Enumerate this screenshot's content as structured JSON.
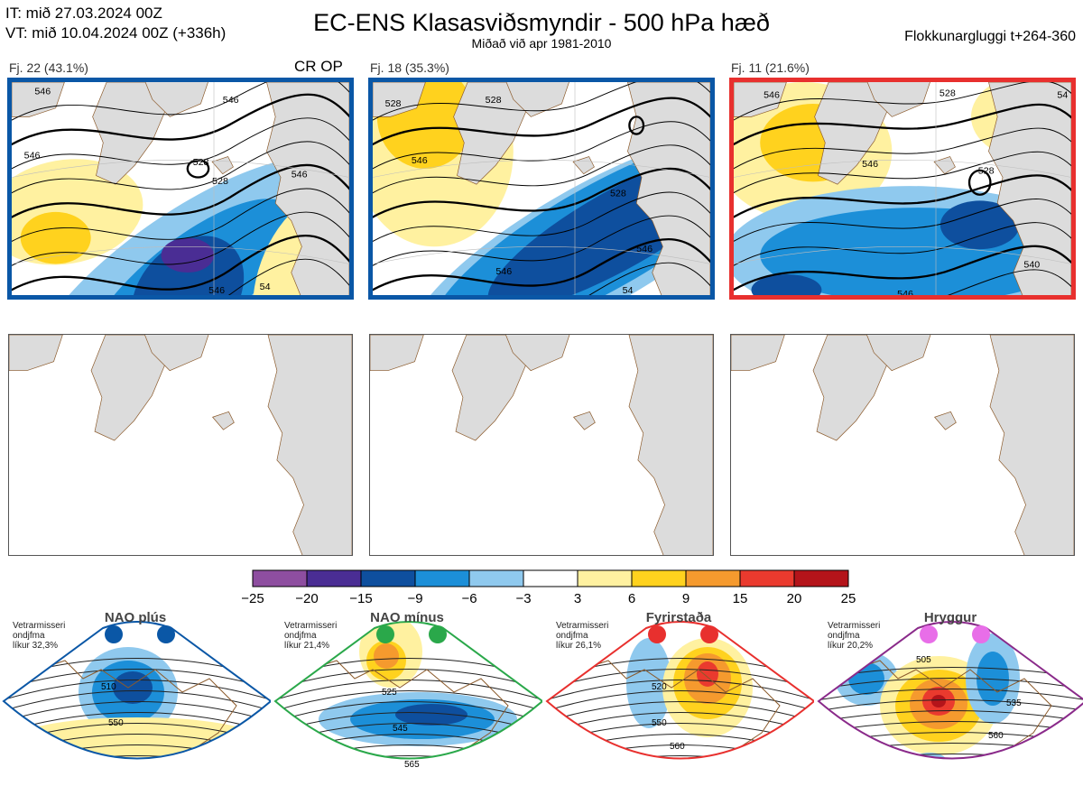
{
  "header": {
    "it": "IT: mið 27.03.2024 00Z",
    "vt": "VT: mið 10.04.2024 00Z  (+336h)",
    "title": "EC-ENS Klasasviðsmyndir - 500 hPa hæð",
    "subtitle": "Miðað við apr 1981-2010",
    "window": "Flokkunargluggi t+264-360"
  },
  "clusters": [
    {
      "label": "Fj. 22 (43.1%)",
      "tag": "CR OP",
      "border": "#0a57a6",
      "contours": [
        "546",
        "528",
        "528",
        "546",
        "546",
        "546",
        "546",
        "54"
      ]
    },
    {
      "label": "Fj. 18 (35.3%)",
      "tag": "",
      "border": "#0a57a6",
      "contours": [
        "528",
        "546",
        "528",
        "528",
        "546",
        "546",
        "54"
      ]
    },
    {
      "label": "Fj. 11 (21.6%)",
      "tag": "",
      "border": "#e8302e",
      "contours": [
        "546",
        "528",
        "546",
        "528",
        "54",
        "546",
        "540"
      ]
    }
  ],
  "colorbar": {
    "ticks": [
      "−25",
      "−20",
      "−15",
      "−9",
      "−6",
      "−3",
      "3",
      "6",
      "9",
      "15",
      "20",
      "25"
    ],
    "colors": [
      "#8e4ea0",
      "#4a2d94",
      "#0e4f9e",
      "#1c8fd8",
      "#8fc9ee",
      "#ffffff",
      "#fff1a0",
      "#ffd21e",
      "#f59a2e",
      "#ea3a2e",
      "#b4141a"
    ]
  },
  "regimes": [
    {
      "name": "NAO plús",
      "note": [
        "Vetrarmisseri",
        "ondjfma",
        "líkur 32,3%"
      ],
      "dot": "#0a57a6",
      "border": "#0a57a6",
      "contours": [
        "510",
        "550"
      ]
    },
    {
      "name": "NAO mínus",
      "note": [
        "Vetrarmisseri",
        "ondjfma",
        "líkur 21,4%"
      ],
      "dot": "#2aa84a",
      "border": "#2aa84a",
      "contours": [
        "525",
        "545",
        "565"
      ]
    },
    {
      "name": "Fyrirstaða",
      "note": [
        "Vetrarmisseri",
        "ondjfma",
        "líkur 26,1%"
      ],
      "dot": "#e8302e",
      "border": "#e8302e",
      "contours": [
        "520",
        "550",
        "560"
      ]
    },
    {
      "name": "Hryggur",
      "note": [
        "Vetrarmisseri",
        "ondjfma",
        "líkur 20,2%"
      ],
      "dot": "#e86ee8",
      "border": "#8a2a8a",
      "contours": [
        "505",
        "535",
        "560"
      ]
    }
  ],
  "chart_data": {
    "type": "heatmap",
    "title": "EC-ENS Klasasviðsmyndir - 500 hPa hæð",
    "subtitle": "Miðað við apr 1981-2010",
    "colorbar_ticks": [
      -25,
      -20,
      -15,
      -9,
      -6,
      -3,
      3,
      6,
      9,
      15,
      20,
      25
    ],
    "clusters": [
      {
        "label": "Fj. 22 (43.1%)",
        "percent": 43.1
      },
      {
        "label": "Fj. 18 (35.3%)",
        "percent": 35.3
      },
      {
        "label": "Fj. 11 (21.6%)",
        "percent": 21.6
      }
    ],
    "regimes": [
      {
        "name": "NAO plús",
        "probability_pct": 32.3
      },
      {
        "name": "NAO mínus",
        "probability_pct": 21.4
      },
      {
        "name": "Fyrirstaða",
        "probability_pct": 26.1
      },
      {
        "name": "Hryggur",
        "probability_pct": 20.2
      }
    ]
  }
}
